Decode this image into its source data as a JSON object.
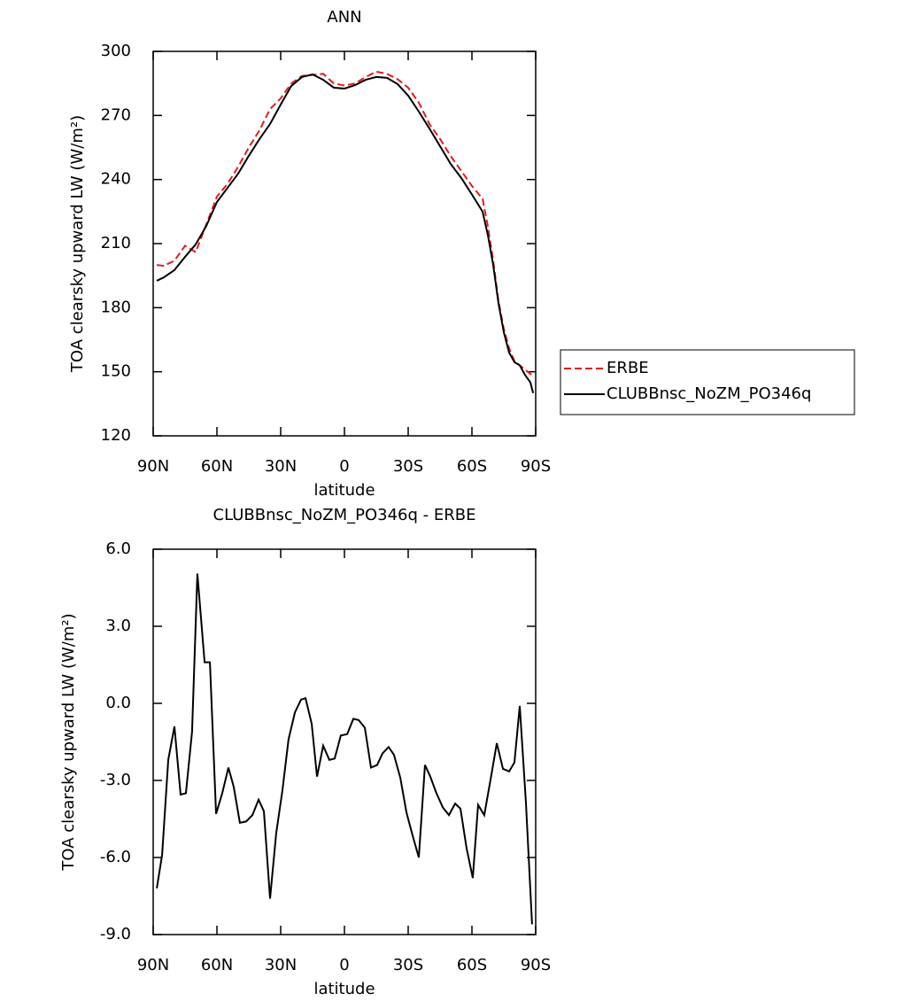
{
  "chart_data": [
    {
      "type": "line",
      "title": "ANN",
      "ylabel": "TOA clearsky upward LW (W/m²)",
      "xlabel": "latitude",
      "x": [
        88.3,
        85,
        80,
        75,
        70,
        65,
        60,
        55,
        50,
        45,
        40,
        35,
        30,
        25,
        20,
        15,
        10,
        5,
        0,
        -5,
        -10,
        -15,
        -20,
        -25,
        -30,
        -35,
        -40,
        -45,
        -50,
        -55,
        -60,
        -65,
        -67.5,
        -70,
        -72.5,
        -75,
        -77.5,
        -80,
        -82.5,
        -85,
        -87.5,
        -88.8
      ],
      "series": [
        {
          "name": "ERBE",
          "color": "#e41a1c",
          "dash": true,
          "values": [
            200,
            199.6,
            202,
            209,
            206,
            219,
            232,
            238,
            246,
            255,
            263,
            273,
            278,
            285,
            288.5,
            289,
            289.5,
            285,
            284,
            285,
            288,
            290.5,
            289.5,
            287,
            283,
            276,
            266,
            259,
            251,
            244,
            237,
            231,
            218,
            202,
            183,
            170,
            161,
            155,
            153,
            151,
            149,
            148
          ]
        },
        {
          "name": "CLUBBnsc_NoZM_PO346q",
          "color": "#000000",
          "dash": false,
          "values": [
            192.6,
            194.2,
            197.6,
            203.8,
            209.6,
            218.3,
            229.5,
            236.1,
            242.8,
            251.1,
            258.9,
            266,
            275.1,
            283.8,
            288,
            289.2,
            286.7,
            283,
            282.6,
            284.2,
            286.7,
            288,
            287.6,
            284.7,
            279.3,
            271.8,
            263.9,
            255.6,
            247.3,
            240.7,
            233,
            225,
            214,
            200,
            182,
            168.5,
            159,
            154.5,
            153,
            148.5,
            145,
            140
          ]
        }
      ],
      "xlim": [
        90,
        -90
      ],
      "xticks": [
        {
          "value": 90,
          "label": "90N"
        },
        {
          "value": 60,
          "label": "60N"
        },
        {
          "value": 30,
          "label": "30N"
        },
        0,
        {
          "value": -30,
          "label": "30S"
        },
        {
          "value": -60,
          "label": "60S"
        },
        {
          "value": -90,
          "label": "90S"
        }
      ],
      "ylim": [
        120,
        300
      ],
      "yticks": [
        120,
        150,
        180,
        210,
        240,
        270,
        300
      ],
      "legend": "right"
    },
    {
      "type": "line",
      "title": "CLUBBnsc_NoZM_PO346q - ERBE",
      "ylabel": "TOA clearsky upward LW (W/m²)",
      "xlabel": "latitude",
      "x": [
        88.3,
        85.8,
        82.9,
        80.0,
        77.1,
        74.6,
        71.7,
        69.2,
        65.8,
        63.3,
        60.4,
        57.5,
        54.6,
        52.1,
        49.2,
        46.3,
        43.3,
        40.4,
        37.9,
        35.0,
        32.1,
        29.2,
        26.3,
        23.3,
        20.4,
        18.3,
        15.4,
        12.9,
        10.0,
        7.1,
        4.6,
        1.7,
        -1.3,
        -4.2,
        -6.7,
        -9.6,
        -12.5,
        -15.4,
        -17.9,
        -20.8,
        -23.3,
        -26.3,
        -29.2,
        -32.1,
        -35.0,
        -37.9,
        -40.4,
        -43.3,
        -46.3,
        -49.2,
        -52.1,
        -54.6,
        -57.5,
        -60.4,
        -62.9,
        -65.8,
        -68.8,
        -71.7,
        -74.6,
        -77.5,
        -80.0,
        -82.5,
        -85.4,
        -88.3
      ],
      "values": [
        -7.2,
        -5.9,
        -2.2,
        -0.9,
        -3.55,
        -3.5,
        -1.1,
        5.05,
        1.6,
        1.6,
        -4.3,
        -3.5,
        -2.5,
        -3.25,
        -4.65,
        -4.6,
        -4.35,
        -3.75,
        -4.2,
        -7.6,
        -5.05,
        -3.4,
        -1.4,
        -0.35,
        0.15,
        0.2,
        -0.8,
        -2.85,
        -1.65,
        -2.2,
        -2.15,
        -1.25,
        -1.2,
        -0.6,
        -0.65,
        -0.95,
        -2.5,
        -2.4,
        -1.95,
        -1.7,
        -2.0,
        -2.9,
        -4.25,
        -5.15,
        -6.0,
        -2.4,
        -2.85,
        -3.5,
        -4.05,
        -4.35,
        -3.9,
        -4.1,
        -5.65,
        -6.8,
        -3.95,
        -4.35,
        -2.95,
        -1.55,
        -2.55,
        -2.65,
        -2.3,
        -0.1,
        -3.85,
        -8.6
      ],
      "color": "#000000",
      "xlim": [
        90,
        -90
      ],
      "xticks": [
        {
          "value": 90,
          "label": "90N"
        },
        {
          "value": 60,
          "label": "60N"
        },
        {
          "value": 30,
          "label": "30N"
        },
        0,
        {
          "value": -30,
          "label": "30S"
        },
        {
          "value": -60,
          "label": "60S"
        },
        {
          "value": -90,
          "label": "90S"
        }
      ],
      "ylim": [
        -9,
        6
      ],
      "yticks": [
        {
          "value": -9,
          "label": "-9.0"
        },
        {
          "value": -6,
          "label": "-6.0"
        },
        {
          "value": -3,
          "label": "-3.0"
        },
        {
          "value": 0,
          "label": "0.0"
        },
        {
          "value": 3,
          "label": "3.0"
        },
        {
          "value": 6,
          "label": "6.0"
        }
      ]
    }
  ]
}
